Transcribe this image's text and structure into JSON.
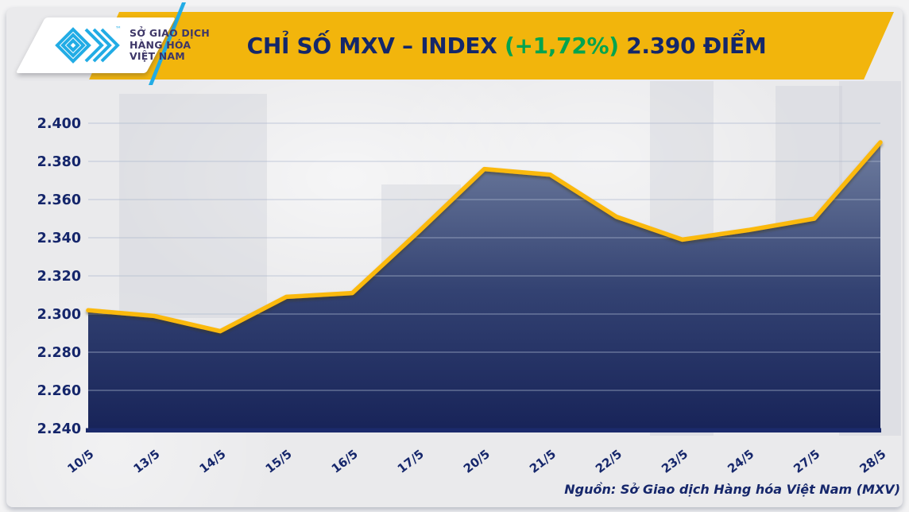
{
  "header": {
    "logo": {
      "lines": [
        "SỞ GIAO DỊCH",
        "HÀNG HÓA",
        "VIỆT NAM"
      ],
      "trademark": "™",
      "mark_color": "#22ACE5",
      "text_color": "#3E3768"
    },
    "title": {
      "main": "CHỈ SỐ MXV – INDEX ",
      "change": "(+1,72%)",
      "suffix": " 2.390 ĐIỂM",
      "banner_color": "#F2B50C",
      "text_color": "#14276A",
      "change_color": "#00A44F"
    }
  },
  "chart_data": {
    "type": "area",
    "title": "CHỈ SỐ MXV – INDEX (+1,72%) 2.390 ĐIỂM",
    "categories": [
      "10/5",
      "13/5",
      "14/5",
      "15/5",
      "16/5",
      "17/5",
      "20/5",
      "21/5",
      "22/5",
      "23/5",
      "24/5",
      "27/5",
      "28/5"
    ],
    "values": [
      2302,
      2299,
      2291,
      2309,
      2311,
      2343,
      2376,
      2373,
      2351,
      2339,
      2344,
      2350,
      2390
    ],
    "ylim": [
      2240,
      2400
    ],
    "ytick_step": 20,
    "ytick_labels": [
      "2.240",
      "2.260",
      "2.280",
      "2.300",
      "2.320",
      "2.340",
      "2.360",
      "2.380",
      "2.400"
    ],
    "grid": true,
    "legend": false,
    "xlabel": "",
    "ylabel": "",
    "line_color": "#FBB90B",
    "fill_top": "#7684A4",
    "fill_mid": "#334272",
    "fill_bottom": "#182459",
    "grid_color": "#AEB9CF",
    "axis_color": "#1B2A6B",
    "label_color": "#15266B"
  },
  "footer": {
    "source": "Nguồn: Sở Giao dịch Hàng hóa Việt Nam (MXV)",
    "color": "#16276B"
  }
}
